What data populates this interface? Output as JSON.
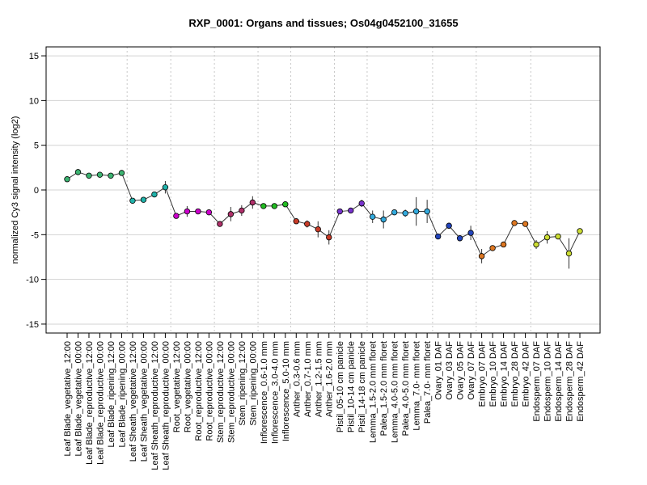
{
  "chart_data": {
    "type": "line",
    "title": "RXP_0001: Organs and tissues; Os04g0452100_31655",
    "xlabel": "",
    "ylabel": "normalized Cy3 signal intensity (log2)",
    "ylim": [
      -16,
      16
    ],
    "yticks": [
      -15,
      -10,
      -5,
      0,
      5,
      10,
      15
    ],
    "grid": true,
    "categories": [
      "Leaf Blade_vegetative_12:00",
      "Leaf Blade_vegetative_00:00",
      "Leaf Blade_reproductive_12:00",
      "Leaf Blade_reproductive_00:00",
      "Leaf Blade_ripening_12:00",
      "Leaf Blade_ripening_00:00",
      "Leaf Sheath_vegetative_12:00",
      "Leaf Sheath_vegetative_00:00",
      "Leaf Sheath_reproductive_12:00",
      "Leaf Sheath_reproductive_00:00",
      "Root_vegetative_12:00",
      "Root_vegetative_00:00",
      "Root_reproductive_12:00",
      "Root_reproductive_00:00",
      "Stem_reproductive_12:00",
      "Stem_reproductive_00:00",
      "Stem_ripening_12:00",
      "Stem_ripening_00:00",
      "Inflorescence_0.6-1.0 mm",
      "Inflorescence_3.0-4.0 mm",
      "Inflorescence_5.0-10 mm",
      "Anther_0.3-0.6 mm",
      "Anther_0.7-1.0 mm",
      "Anther_1.2-1.5 mm",
      "Anther_1.6-2.0 mm",
      "Pistil_05-10 cm panicle",
      "Pistil_10-14 cm panicle",
      "Pistil_14-18 cm panicle",
      "Lemma_1.5-2.0 mm floret",
      "Palea_1.5-2.0 mm floret",
      "Lemma_4.0-5.0 mm floret",
      "Palea_4.0-5.0 mm floret",
      "Lemma_7.0- mm floret",
      "Palea_7.0- mm floret",
      "Ovary_01 DAF",
      "Ovary_03 DAF",
      "Ovary_05 DAF",
      "Ovary_07 DAF",
      "Embryo_07 DAF",
      "Embryo_10 DAF",
      "Embryo_14 DAF",
      "Embryo_28 DAF",
      "Embryo_42 DAF",
      "Endosperm_07 DAF",
      "Endosperm_10 DAF",
      "Endosperm_14 DAF",
      "Endosperm_28 DAF",
      "Endosperm_42 DAF"
    ],
    "values": [
      1.2,
      2.0,
      1.6,
      1.7,
      1.6,
      1.9,
      -1.2,
      -1.1,
      -0.5,
      0.3,
      -2.9,
      -2.4,
      -2.4,
      -2.5,
      -3.8,
      -2.7,
      -2.3,
      -1.4,
      -1.8,
      -1.8,
      -1.6,
      -3.5,
      -3.8,
      -4.4,
      -5.3,
      -2.4,
      -2.3,
      -1.5,
      -3.0,
      -3.3,
      -2.5,
      -2.6,
      -2.4,
      -2.4,
      -5.2,
      -4.0,
      -5.4,
      -4.8,
      -7.4,
      -6.5,
      -6.1,
      -3.7,
      -3.8,
      -6.1,
      -5.3,
      -5.2,
      -7.1,
      -4.6
    ],
    "error": [
      0.15,
      0.15,
      0.15,
      0.15,
      0.3,
      0.15,
      0.15,
      0.15,
      0.25,
      0.7,
      0.3,
      0.6,
      0.15,
      0.15,
      0.15,
      0.8,
      0.6,
      0.7,
      0.15,
      0.15,
      0.3,
      0.15,
      0.4,
      0.9,
      0.8,
      0.15,
      0.2,
      0.4,
      0.7,
      1.0,
      0.3,
      0.4,
      1.6,
      1.3,
      0.15,
      0.3,
      0.15,
      0.8,
      0.8,
      0.15,
      0.15,
      0.15,
      0.15,
      0.5,
      0.7,
      0.2,
      1.7,
      0.15
    ],
    "point_colors": [
      "#3cb371",
      "#3cb371",
      "#3cb371",
      "#3cb371",
      "#3cb371",
      "#3cb371",
      "#20b2aa",
      "#20b2aa",
      "#20b2aa",
      "#20b2aa",
      "#cc00cc",
      "#cc00cc",
      "#cc00cc",
      "#cc00cc",
      "#b0306a",
      "#b0306a",
      "#b0306a",
      "#b0306a",
      "#22bb22",
      "#22bb22",
      "#22bb22",
      "#c83c28",
      "#c83c28",
      "#c83c28",
      "#c83c28",
      "#7733cc",
      "#7733cc",
      "#7733cc",
      "#33aadd",
      "#33aadd",
      "#33aadd",
      "#33aadd",
      "#33aadd",
      "#33aadd",
      "#2244bb",
      "#2244bb",
      "#2244bb",
      "#2244bb",
      "#dd7722",
      "#dd7722",
      "#dd7722",
      "#dd7722",
      "#dd7722",
      "#ccdd33",
      "#ccdd33",
      "#ccdd33",
      "#ccdd33",
      "#ccdd33"
    ],
    "line_color": "#333333",
    "separator_after_index": [
      5,
      9,
      13,
      17,
      20,
      24,
      27,
      33,
      37,
      42
    ]
  }
}
